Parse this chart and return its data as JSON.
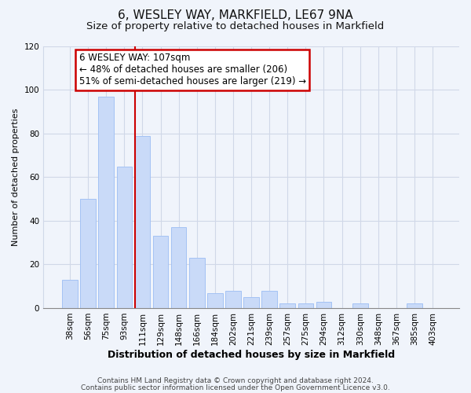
{
  "title": "6, WESLEY WAY, MARKFIELD, LE67 9NA",
  "subtitle": "Size of property relative to detached houses in Markfield",
  "xlabel": "Distribution of detached houses by size in Markfield",
  "ylabel": "Number of detached properties",
  "bar_labels": [
    "38sqm",
    "56sqm",
    "75sqm",
    "93sqm",
    "111sqm",
    "129sqm",
    "148sqm",
    "166sqm",
    "184sqm",
    "202sqm",
    "221sqm",
    "239sqm",
    "257sqm",
    "275sqm",
    "294sqm",
    "312sqm",
    "330sqm",
    "348sqm",
    "367sqm",
    "385sqm",
    "403sqm"
  ],
  "bar_values": [
    13,
    50,
    97,
    65,
    79,
    33,
    37,
    23,
    7,
    8,
    5,
    8,
    2,
    2,
    3,
    0,
    2,
    0,
    0,
    2,
    0
  ],
  "bar_color": "#c9daf8",
  "bar_edge_color": "#a4c2f4",
  "vline_color": "#cc0000",
  "ylim": [
    0,
    120
  ],
  "yticks": [
    0,
    20,
    40,
    60,
    80,
    100,
    120
  ],
  "annotation_text": "6 WESLEY WAY: 107sqm\n← 48% of detached houses are smaller (206)\n51% of semi-detached houses are larger (219) →",
  "annotation_box_edgecolor": "#cc0000",
  "annotation_box_facecolor": "#ffffff",
  "footer_line1": "Contains HM Land Registry data © Crown copyright and database right 2024.",
  "footer_line2": "Contains public sector information licensed under the Open Government Licence v3.0.",
  "title_fontsize": 11,
  "subtitle_fontsize": 9.5,
  "xlabel_fontsize": 9,
  "ylabel_fontsize": 8,
  "tick_fontsize": 7.5,
  "footer_fontsize": 6.5,
  "annotation_fontsize": 8.5,
  "grid_color": "#d0d8e8",
  "background_color": "#f0f4fb"
}
